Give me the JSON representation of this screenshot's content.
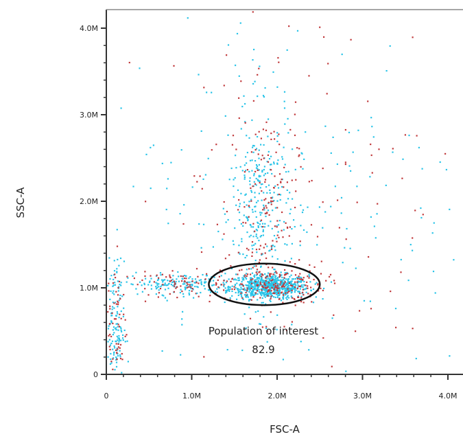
{
  "chart_data": {
    "type": "scatter",
    "xlabel": "FSC-A",
    "ylabel": "SSC-A",
    "xlim": [
      0,
      4100000
    ],
    "ylim": [
      0,
      4200000
    ],
    "x_ticks": [
      {
        "value": 0,
        "label": "0"
      },
      {
        "value": 1000000,
        "label": "1.0M"
      },
      {
        "value": 2000000,
        "label": "2.0M"
      },
      {
        "value": 3000000,
        "label": "3.0M"
      },
      {
        "value": 4000000,
        "label": "4.0M"
      }
    ],
    "y_ticks": [
      {
        "value": 0,
        "label": "0"
      },
      {
        "value": 1000000,
        "label": "1.0M"
      },
      {
        "value": 2000000,
        "label": "2.0M"
      },
      {
        "value": 3000000,
        "label": "3.0M"
      },
      {
        "value": 4000000,
        "label": "4.0M"
      }
    ],
    "series_colors": {
      "cyan": "#29c4e8",
      "red": "#c0393b"
    },
    "clusters": [
      {
        "color": "cyan",
        "cx": 1900000,
        "cy": 1020000,
        "sx": 230000,
        "sy": 70000,
        "n": 700
      },
      {
        "color": "red",
        "cx": 1950000,
        "cy": 1050000,
        "sx": 300000,
        "sy": 110000,
        "n": 180
      },
      {
        "color": "cyan",
        "cx": 850000,
        "cy": 1050000,
        "sx": 320000,
        "sy": 60000,
        "n": 160
      },
      {
        "color": "red",
        "cx": 900000,
        "cy": 1050000,
        "sx": 330000,
        "sy": 70000,
        "n": 70
      },
      {
        "color": "cyan",
        "cx": 1800000,
        "cy": 1900000,
        "sx": 170000,
        "sy": 550000,
        "n": 260
      },
      {
        "color": "red",
        "cx": 1850000,
        "cy": 1900000,
        "sx": 190000,
        "sy": 600000,
        "n": 140
      },
      {
        "color": "cyan",
        "cx": 80000,
        "cy": 550000,
        "sx": 60000,
        "sy": 380000,
        "n": 150
      },
      {
        "color": "red",
        "cx": 90000,
        "cy": 600000,
        "sx": 70000,
        "sy": 420000,
        "n": 60
      },
      {
        "color": "cyan",
        "cx": 2100000,
        "cy": 2100000,
        "sx": 1100000,
        "sy": 1100000,
        "n": 200
      },
      {
        "color": "red",
        "cx": 2200000,
        "cy": 2200000,
        "sx": 1100000,
        "sy": 1100000,
        "n": 120
      }
    ],
    "gate": {
      "name": "Population of interest",
      "value": "82.9",
      "cx": 1850000,
      "cy": 1040000,
      "rx": 650000,
      "ry": 240000
    },
    "grid": false,
    "legend": "none"
  }
}
